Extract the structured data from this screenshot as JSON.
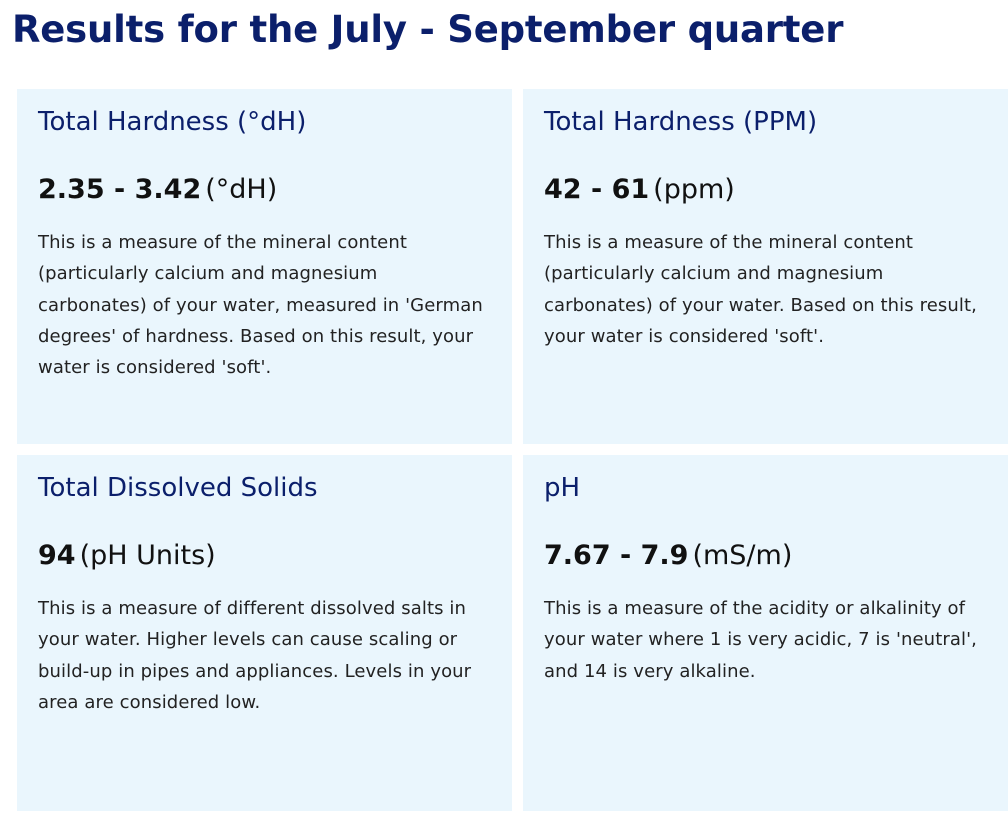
{
  "page": {
    "heading": "Results for the July - September quarter"
  },
  "cards": [
    {
      "title": "Total Hardness (°dH)",
      "value": "2.35 - 3.42",
      "unit": "(°dH)",
      "description": "This is a measure of the mineral content (particularly calcium and magnesium carbonates) of your water, measured in 'German degrees' of hardness. Based on this result, your water is considered 'soft'."
    },
    {
      "title": "Total Hardness (PPM)",
      "value": "42 - 61",
      "unit": "(ppm)",
      "description": "This is a measure of the mineral content (particularly calcium and magnesium carbonates) of your water. Based on this result, your water is considered 'soft'."
    },
    {
      "title": "Total Dissolved Solids",
      "value": "94",
      "unit": "(pH Units)",
      "description": "This is a measure of different dissolved salts in your water. Higher levels can cause scaling or build-up in pipes and appliances. Levels in your area are considered low."
    },
    {
      "title": "pH",
      "value": "7.67 - 7.9",
      "unit": "(mS/m)",
      "description": "This is a measure of the acidity or alkalinity of your water where 1 is very acidic, 7 is 'neutral', and 14 is very alkaline."
    }
  ],
  "colors": {
    "heading": "#0b1f6b",
    "card_background": "#eaf6fd",
    "value_text": "#111111",
    "body_text": "#222222"
  }
}
